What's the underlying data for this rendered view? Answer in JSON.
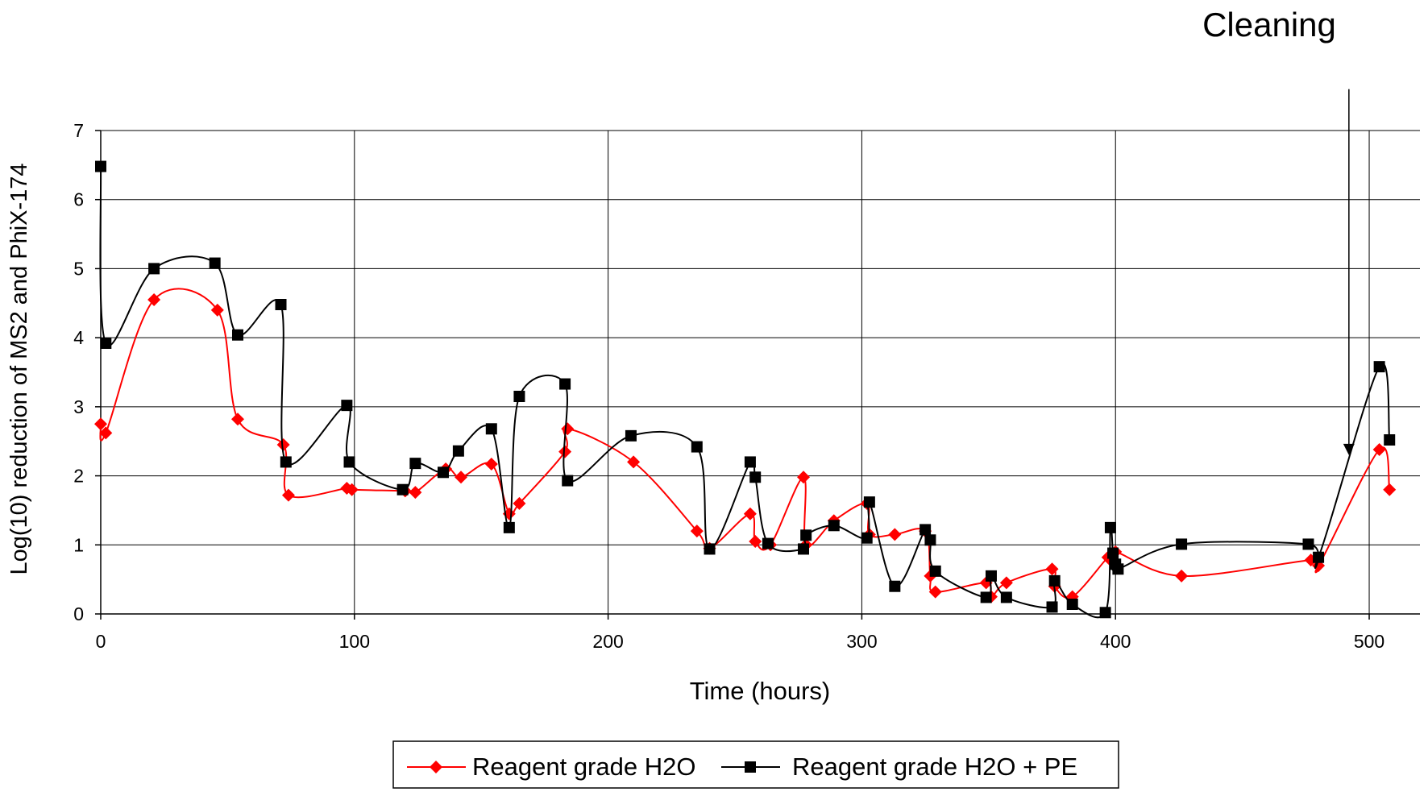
{
  "chart_data": {
    "type": "line",
    "xlabel": "Time (hours)",
    "ylabel": "Log(10) reduction of MS2 and PhiX-174",
    "xlim": [
      0,
      520
    ],
    "ylim": [
      0,
      7
    ],
    "xticks": [
      0,
      100,
      200,
      300,
      400,
      500
    ],
    "yticks": [
      0,
      1,
      2,
      3,
      4,
      5,
      6,
      7
    ],
    "grid": true,
    "legend_position": "bottom",
    "annotation": {
      "text": "Cleaning",
      "x": 492,
      "y_from": 7.6,
      "y_to": 2.3
    },
    "series": [
      {
        "name": "Reagent grade H2O",
        "color": "#ff0000",
        "marker": "diamond",
        "points": [
          [
            0,
            2.75
          ],
          [
            2,
            2.62
          ],
          [
            21,
            4.55
          ],
          [
            46,
            4.4
          ],
          [
            54,
            2.82
          ],
          [
            72,
            2.45
          ],
          [
            74,
            1.72
          ],
          [
            97,
            1.82
          ],
          [
            99,
            1.8
          ],
          [
            120,
            1.78
          ],
          [
            124,
            1.76
          ],
          [
            136,
            2.1
          ],
          [
            142,
            1.98
          ],
          [
            154,
            2.17
          ],
          [
            161,
            1.45
          ],
          [
            165,
            1.6
          ],
          [
            183,
            2.35
          ],
          [
            184,
            2.68
          ],
          [
            210,
            2.2
          ],
          [
            235,
            1.2
          ],
          [
            240,
            0.95
          ],
          [
            256,
            1.45
          ],
          [
            258,
            1.05
          ],
          [
            264,
            1.0
          ],
          [
            277,
            1.98
          ],
          [
            278,
            1.0
          ],
          [
            289,
            1.35
          ],
          [
            302,
            1.6
          ],
          [
            303,
            1.15
          ],
          [
            313,
            1.15
          ],
          [
            325,
            1.2
          ],
          [
            327,
            0.55
          ],
          [
            329,
            0.32
          ],
          [
            349,
            0.45
          ],
          [
            351,
            0.25
          ],
          [
            357,
            0.45
          ],
          [
            375,
            0.65
          ],
          [
            376,
            0.4
          ],
          [
            383,
            0.25
          ],
          [
            397,
            0.82
          ],
          [
            398,
            0.78
          ],
          [
            400,
            0.9
          ],
          [
            426,
            0.55
          ],
          [
            477,
            0.78
          ],
          [
            480,
            0.7
          ],
          [
            504,
            2.38
          ],
          [
            508,
            1.8
          ]
        ]
      },
      {
        "name": "Reagent grade H2O + PE",
        "color": "#000000",
        "marker": "square",
        "points": [
          [
            0,
            6.48
          ],
          [
            2,
            3.92
          ],
          [
            21,
            5.0
          ],
          [
            45,
            5.08
          ],
          [
            54,
            4.04
          ],
          [
            71,
            4.48
          ],
          [
            73,
            2.2
          ],
          [
            97,
            3.02
          ],
          [
            98,
            2.2
          ],
          [
            119,
            1.8
          ],
          [
            124,
            2.18
          ],
          [
            135,
            2.05
          ],
          [
            141,
            2.36
          ],
          [
            154,
            2.68
          ],
          [
            161,
            1.25
          ],
          [
            165,
            3.15
          ],
          [
            183,
            3.33
          ],
          [
            184,
            1.93
          ],
          [
            209,
            2.58
          ],
          [
            235,
            2.42
          ],
          [
            240,
            0.94
          ],
          [
            256,
            2.2
          ],
          [
            258,
            1.98
          ],
          [
            263,
            1.02
          ],
          [
            277,
            0.94
          ],
          [
            278,
            1.14
          ],
          [
            289,
            1.28
          ],
          [
            302,
            1.1
          ],
          [
            303,
            1.62
          ],
          [
            313,
            0.4
          ],
          [
            325,
            1.22
          ],
          [
            327,
            1.07
          ],
          [
            329,
            0.62
          ],
          [
            349,
            0.24
          ],
          [
            351,
            0.55
          ],
          [
            357,
            0.24
          ],
          [
            375,
            0.1
          ],
          [
            376,
            0.48
          ],
          [
            383,
            0.14
          ],
          [
            396,
            0.02
          ],
          [
            398,
            1.25
          ],
          [
            399,
            0.88
          ],
          [
            400,
            0.72
          ],
          [
            401,
            0.65
          ],
          [
            426,
            1.01
          ],
          [
            476,
            1.01
          ],
          [
            480,
            0.82
          ],
          [
            504,
            3.58
          ],
          [
            508,
            2.52
          ]
        ]
      }
    ]
  }
}
